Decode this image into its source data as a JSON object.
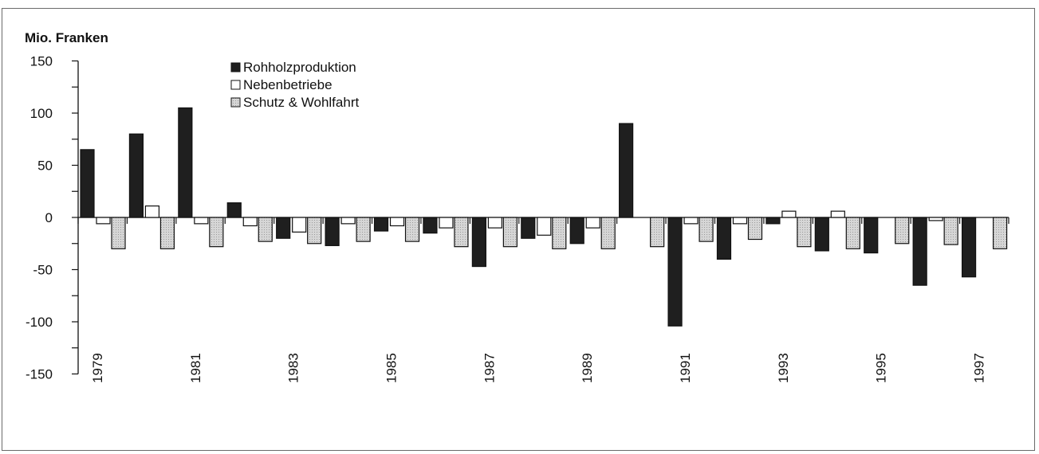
{
  "chart_data": {
    "type": "bar",
    "ylabel": "Mio. Franken",
    "ylim": [
      -150,
      150
    ],
    "yticks": [
      150,
      100,
      50,
      0,
      -50,
      -100,
      -150
    ],
    "categories": [
      "1979",
      "1980",
      "1981",
      "1982",
      "1983",
      "1984",
      "1985",
      "1986",
      "1987",
      "1988",
      "1989",
      "1990",
      "1991",
      "1992",
      "1993",
      "1994",
      "1995",
      "1996",
      "1997"
    ],
    "xtick_labels": [
      "1979",
      "",
      "1981",
      "",
      "1983",
      "",
      "1985",
      "",
      "1987",
      "",
      "1989",
      "",
      "1991",
      "",
      "1993",
      "",
      "1995",
      "",
      "1997"
    ],
    "legend_position": "top-left",
    "grid": false,
    "series": [
      {
        "name": "Rohholzproduktion",
        "color": "#1f1f1f",
        "values": [
          65,
          80,
          105,
          14,
          -20,
          -27,
          -13,
          -15,
          -47,
          -20,
          -25,
          90,
          -104,
          -40,
          -6,
          -32,
          -34,
          -65,
          -57
        ]
      },
      {
        "name": "Nebenbetriebe",
        "color": "#ffffff",
        "values": [
          -6,
          11,
          -6,
          -8,
          -14,
          -6,
          -8,
          -10,
          -10,
          -17,
          -10,
          0,
          -6,
          -6,
          6,
          6,
          0,
          -3,
          0
        ]
      },
      {
        "name": "Schutz & Wohlfahrt",
        "color": "#cfcfcf",
        "values": [
          -30,
          -30,
          -28,
          -23,
          -25,
          -23,
          -23,
          -28,
          -28,
          -30,
          -30,
          -28,
          -23,
          -21,
          -28,
          -30,
          -25,
          -26,
          -30
        ]
      }
    ]
  }
}
